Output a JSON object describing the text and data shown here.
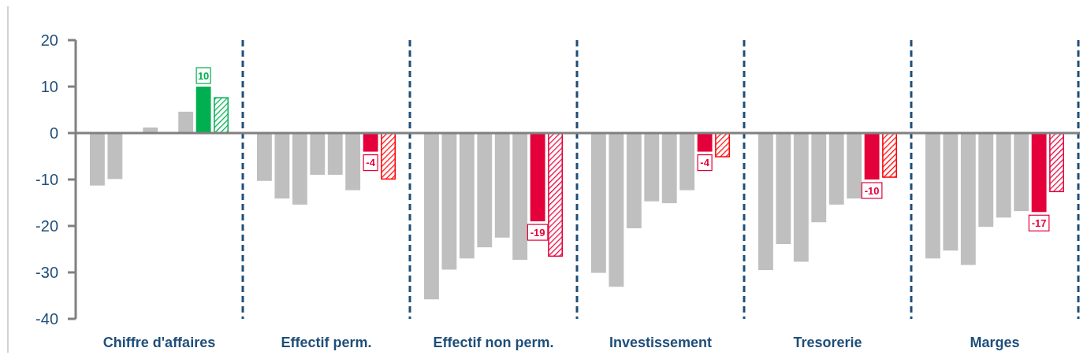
{
  "chart_data": {
    "type": "bar",
    "categories": [
      "Chiffre d'affaires",
      "Effectif perm.",
      "Effectif non perm.",
      "Investissement",
      "Tresorerie",
      "Marges"
    ],
    "series": [
      {
        "color": "#bfbfbf",
        "values": [
          -11.3,
          -10.3,
          -35.8,
          -30.1,
          -29.5,
          -27.0
        ]
      },
      {
        "color": "#bfbfbf",
        "values": [
          -9.9,
          -14.1,
          -29.4,
          -33.1,
          -23.9,
          -25.3
        ]
      },
      {
        "color": "#bfbfbf",
        "values": [
          null,
          -15.4,
          -27.0,
          -20.5,
          -27.7,
          -28.4
        ]
      },
      {
        "color": "#bfbfbf",
        "values": [
          1.2,
          -9.0,
          -24.6,
          -14.7,
          -19.2,
          -20.2
        ]
      },
      {
        "color": "#bfbfbf",
        "values": [
          null,
          -9.0,
          -22.5,
          -15.1,
          -15.4,
          -18.2
        ]
      },
      {
        "color": "#bfbfbf",
        "values": [
          4.6,
          -12.3,
          -27.3,
          -12.3,
          -14.1,
          -16.8
        ]
      },
      {
        "colors": [
          "#00b050",
          "#e4003a",
          "#e4003a",
          "#e4003a",
          "#e4003a",
          "#e4003a"
        ],
        "values": [
          10,
          -4,
          -19,
          -4,
          -10,
          -17
        ],
        "value_labels": [
          "10",
          "-4",
          "-19",
          "-4",
          "-10",
          "-17"
        ]
      },
      {
        "colors": [
          "#00b050",
          "#ff0000",
          "#e4003a",
          "#ff0000",
          "#ff0000",
          "#e4003a"
        ],
        "values": [
          7.6,
          -9.9,
          -26.5,
          -5.1,
          -9.5,
          -12.6
        ]
      }
    ],
    "ylim": [
      -40,
      20
    ],
    "yticks": [
      -40,
      -30,
      -20,
      -10,
      0,
      10,
      20
    ]
  }
}
